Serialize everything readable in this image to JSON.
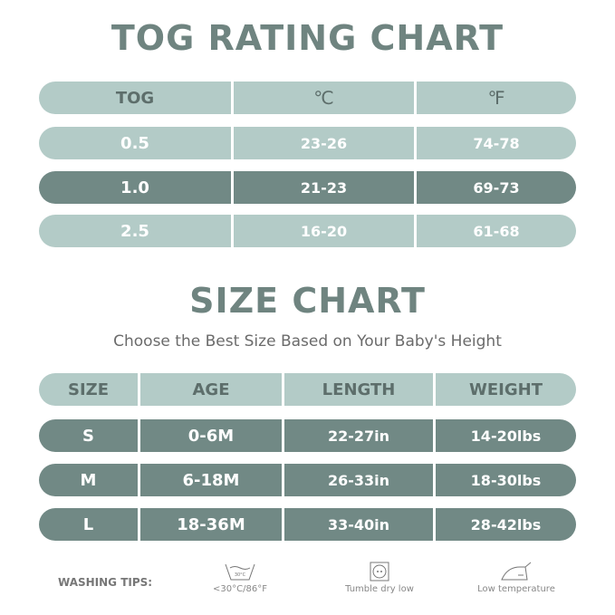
{
  "tog_chart": {
    "title": "TOG RATING CHART",
    "headers": [
      "TOG",
      "℃",
      "℉"
    ],
    "rows": [
      [
        "0.5",
        "23-26",
        "74-78"
      ],
      [
        "1.0",
        "21-23",
        "69-73"
      ],
      [
        "2.5",
        "16-20",
        "61-68"
      ]
    ],
    "highlighted_row": 1
  },
  "size_chart": {
    "title": "SIZE CHART",
    "subtitle": "Choose the Best Size Based on Your Baby's Height",
    "headers": [
      "SIZE",
      "AGE",
      "LENGTH",
      "WEIGHT"
    ],
    "rows": [
      [
        "S",
        "0-6M",
        "22-27in",
        "14-20lbs"
      ],
      [
        "M",
        "6-18M",
        "26-33in",
        "18-30lbs"
      ],
      [
        "L",
        "18-36M",
        "33-40in",
        "28-42lbs"
      ]
    ]
  },
  "washing": {
    "label": "WASHING TIPS:",
    "icon_wash_text": "30°C",
    "tips": [
      {
        "icon": "wash-tub-icon",
        "text": "<30°C/86°F"
      },
      {
        "icon": "tumble-dry-icon",
        "text": "Tumble dry low"
      },
      {
        "icon": "iron-icon",
        "text": "Low temperature"
      }
    ]
  },
  "colors": {
    "light": "#b3cbc7",
    "dark": "#718985",
    "title": "#6f8480"
  }
}
